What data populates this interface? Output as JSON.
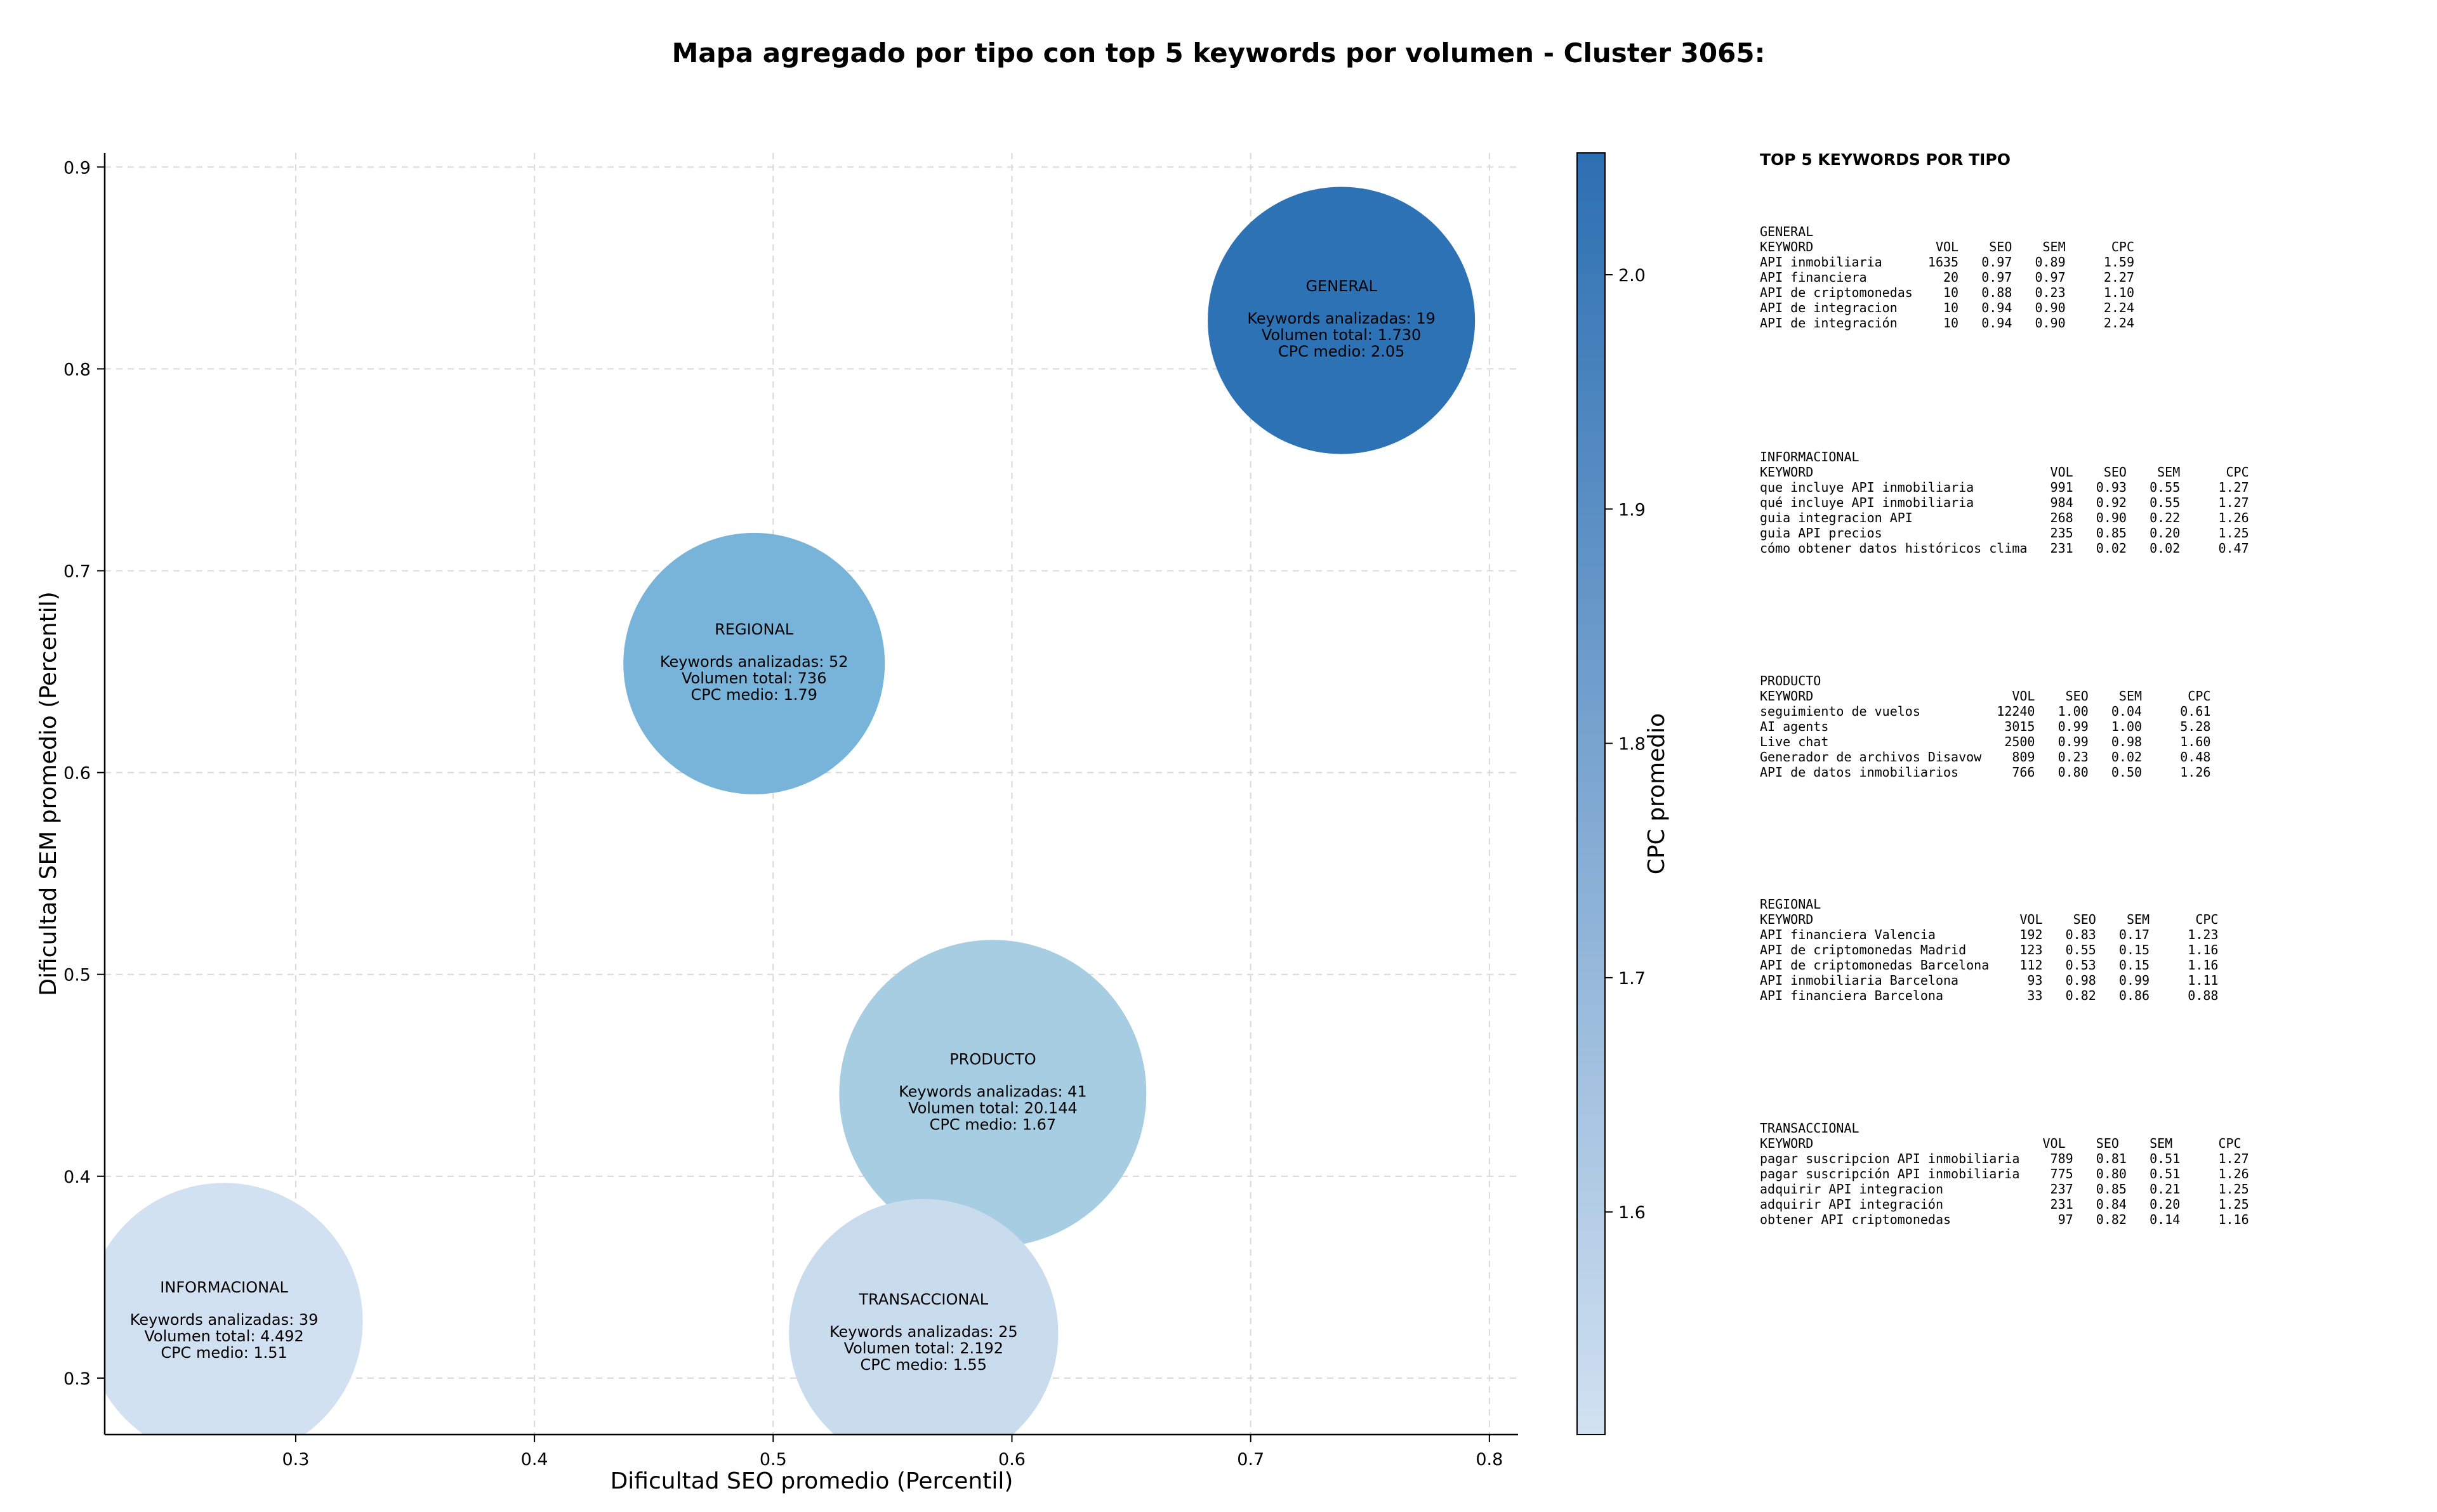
{
  "chart_data": {
    "type": "scatter",
    "title": "Mapa agregado por tipo con top 5 keywords por volumen - Cluster 3065:",
    "xlabel": "Dificultad SEO promedio (Percentil)",
    "ylabel": "Dificultad SEM promedio (Percentil)",
    "colorbar_label": "CPC promedio",
    "xlim": [
      0.22,
      0.812
    ],
    "ylim": [
      0.272,
      0.907
    ],
    "xticks": [
      "0.3",
      "0.4",
      "0.5",
      "0.6",
      "0.7",
      "0.8"
    ],
    "yticks": [
      "0.3",
      "0.4",
      "0.5",
      "0.6",
      "0.7",
      "0.8",
      "0.9"
    ],
    "colorbar_range": [
      1.505,
      2.052
    ],
    "colorbar_ticks": [
      "1.6",
      "1.7",
      "1.8",
      "1.9",
      "2.0"
    ],
    "grid": true,
    "line1_prefix": "Keywords analizadas: ",
    "line2_prefix": "Volumen total: ",
    "line3_prefix": "CPC medio: ",
    "points": [
      {
        "name": "GENERAL",
        "x": 0.738,
        "y": 0.824,
        "keywords": "19",
        "volume": "1.730",
        "cpc": "2.05",
        "cpc_value": 2.05,
        "volume_value": 1730,
        "color": "#2c72b5"
      },
      {
        "name": "REGIONAL",
        "x": 0.492,
        "y": 0.654,
        "keywords": "52",
        "volume": "736",
        "cpc": "1.79",
        "cpc_value": 1.79,
        "volume_value": 736,
        "color": "#78b4d9"
      },
      {
        "name": "PRODUCTO",
        "x": 0.592,
        "y": 0.441,
        "keywords": "41",
        "volume": "20.144",
        "cpc": "1.67",
        "cpc_value": 1.67,
        "volume_value": 20144,
        "color": "#a7cde3"
      },
      {
        "name": "INFORMACIONAL",
        "x": 0.27,
        "y": 0.328,
        "keywords": "39",
        "volume": "4.492",
        "cpc": "1.51",
        "cpc_value": 1.51,
        "volume_value": 4492,
        "color": "#d1e1f1"
      },
      {
        "name": "TRANSACCIONAL",
        "x": 0.563,
        "y": 0.322,
        "keywords": "25",
        "volume": "2.192",
        "cpc": "1.55",
        "cpc_value": 1.55,
        "volume_value": 2192,
        "color": "#c9dcee"
      }
    ],
    "top5_panel": {
      "title": "TOP 5 KEYWORDS POR TIPO",
      "groups": [
        {
          "type": "GENERAL",
          "header": "KEYWORD                VOL    SEO    SEM      CPC",
          "rows": [
            "API inmobiliaria      1635   0.97   0.89     1.59",
            "API financiera          20   0.97   0.97     2.27",
            "API de criptomonedas    10   0.88   0.23     1.10",
            "API de integracion      10   0.94   0.90     2.24",
            "API de integración      10   0.94   0.90     2.24"
          ]
        },
        {
          "type": "INFORMACIONAL",
          "header": "KEYWORD                               VOL    SEO    SEM      CPC",
          "rows": [
            "que incluye API inmobiliaria          991   0.93   0.55     1.27",
            "qué incluye API inmobiliaria          984   0.92   0.55     1.27",
            "guia integracion API                  268   0.90   0.22     1.26",
            "guia API precios                      235   0.85   0.20     1.25",
            "cómo obtener datos históricos clima   231   0.02   0.02     0.47"
          ]
        },
        {
          "type": "PRODUCTO",
          "header": "KEYWORD                          VOL    SEO    SEM      CPC",
          "rows": [
            "seguimiento de vuelos          12240   1.00   0.04     0.61",
            "AI agents                       3015   0.99   1.00     5.28",
            "Live chat                       2500   0.99   0.98     1.60",
            "Generador de archivos Disavow    809   0.23   0.02     0.48",
            "API de datos inmobiliarios       766   0.80   0.50     1.26"
          ]
        },
        {
          "type": "REGIONAL",
          "header": "KEYWORD                           VOL    SEO    SEM      CPC",
          "rows": [
            "API financiera Valencia           192   0.83   0.17     1.23",
            "API de criptomonedas Madrid       123   0.55   0.15     1.16",
            "API de criptomonedas Barcelona    112   0.53   0.15     1.16",
            "API inmobiliaria Barcelona         93   0.98   0.99     1.11",
            "API financiera Barcelona           33   0.82   0.86     0.88"
          ]
        },
        {
          "type": "TRANSACCIONAL",
          "header": "KEYWORD                              VOL    SEO    SEM      CPC",
          "rows": [
            "pagar suscripcion API inmobiliaria    789   0.81   0.51     1.27",
            "pagar suscripción API inmobiliaria    775   0.80   0.51     1.26",
            "adquirir API integracion              237   0.85   0.21     1.25",
            "adquirir API integración              231   0.84   0.20     1.25",
            "obtener API criptomonedas              97   0.82   0.14     1.16"
          ]
        }
      ]
    },
    "colors": {
      "colorbar_low": "#d1e1f1",
      "colorbar_high": "#2c6fb2",
      "grid": "#d9d9d9",
      "axis": "#000000"
    }
  }
}
